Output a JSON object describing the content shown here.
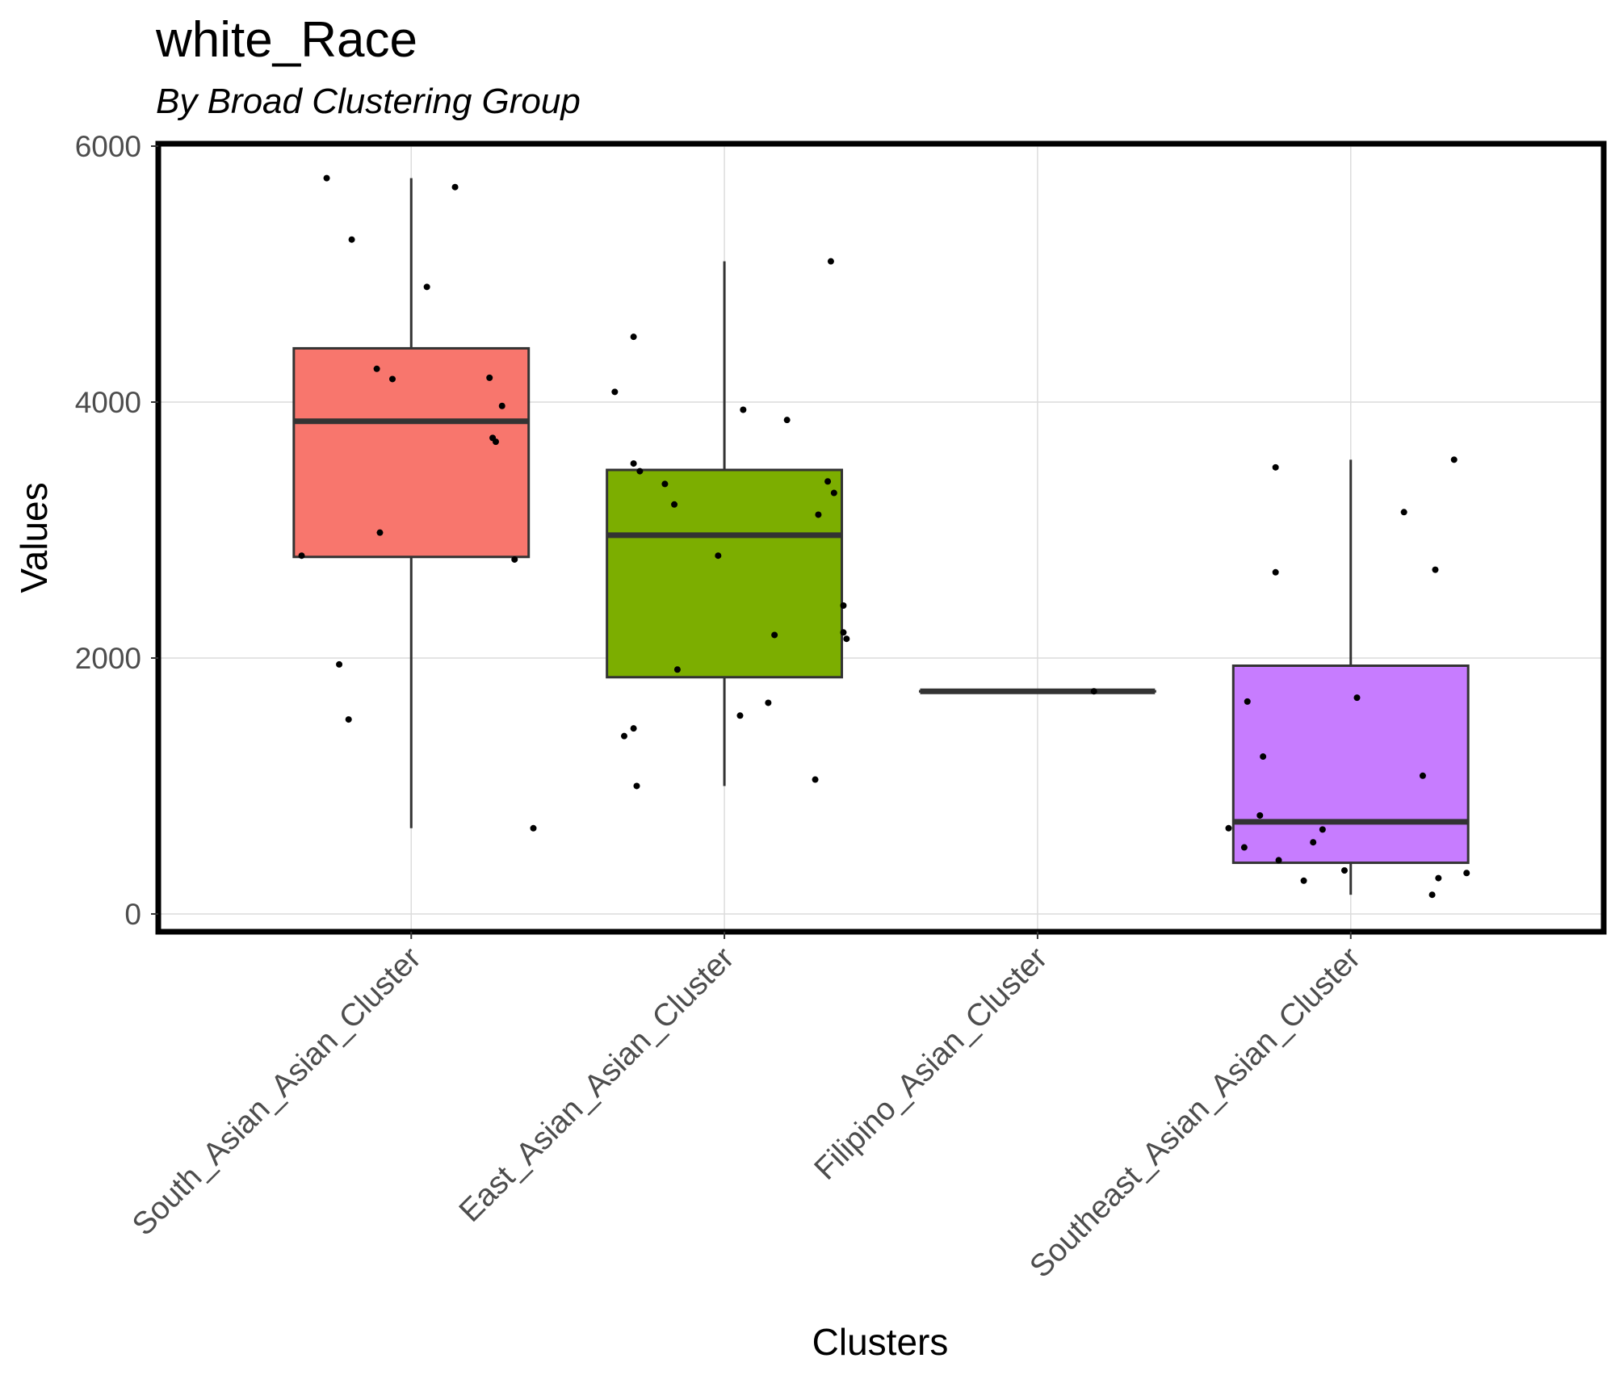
{
  "chart_data": {
    "type": "box",
    "title": "white_Race",
    "subtitle": "By Broad Clustering Group",
    "xlabel": "Clusters",
    "ylabel": "Values",
    "ylim": [
      -120,
      6000
    ],
    "yticks": [
      0,
      2000,
      4000,
      6000
    ],
    "grid": true,
    "categories": [
      "South_Asian_Asian_Cluster",
      "East_Asian_Asian_Cluster",
      "Filipino_Asian_Cluster",
      "Southeast_Asian_Asian_Cluster"
    ],
    "boxes": [
      {
        "category": "South_Asian_Asian_Cluster",
        "color": "#F8766D",
        "whisker_low": 670,
        "q1": 2790,
        "median": 3850,
        "q3": 4420,
        "whisker_high": 5750
      },
      {
        "category": "East_Asian_Asian_Cluster",
        "color": "#7CAE00",
        "whisker_low": 1000,
        "q1": 1850,
        "median": 2960,
        "q3": 3470,
        "whisker_high": 5100
      },
      {
        "category": "Filipino_Asian_Cluster",
        "color": "#00BFC4",
        "whisker_low": 1740,
        "q1": 1740,
        "median": 1740,
        "q3": 1740,
        "whisker_high": 1740
      },
      {
        "category": "Southeast_Asian_Asian_Cluster",
        "color": "#C77CFF",
        "whisker_low": 150,
        "q1": 400,
        "median": 720,
        "q3": 1940,
        "whisker_high": 3550
      }
    ],
    "points": [
      {
        "category": 0,
        "jitter": -0.27,
        "y": 5750
      },
      {
        "category": 0,
        "jitter": 0.14,
        "y": 5680
      },
      {
        "category": 0,
        "jitter": -0.19,
        "y": 5270
      },
      {
        "category": 0,
        "jitter": 0.05,
        "y": 4900
      },
      {
        "category": 0,
        "jitter": -0.11,
        "y": 4260
      },
      {
        "category": 0,
        "jitter": -0.06,
        "y": 4180
      },
      {
        "category": 0,
        "jitter": 0.25,
        "y": 4190
      },
      {
        "category": 0,
        "jitter": 0.29,
        "y": 3970
      },
      {
        "category": 0,
        "jitter": 0.26,
        "y": 3720
      },
      {
        "category": 0,
        "jitter": 0.27,
        "y": 3690
      },
      {
        "category": 0,
        "jitter": -0.1,
        "y": 2980
      },
      {
        "category": 0,
        "jitter": -0.35,
        "y": 2800
      },
      {
        "category": 0,
        "jitter": 0.33,
        "y": 2770
      },
      {
        "category": 0,
        "jitter": -0.23,
        "y": 1950
      },
      {
        "category": 0,
        "jitter": -0.2,
        "y": 1520
      },
      {
        "category": 0,
        "jitter": 0.39,
        "y": 670
      },
      {
        "category": 1,
        "jitter": 0.34,
        "y": 5100
      },
      {
        "category": 1,
        "jitter": -0.29,
        "y": 4510
      },
      {
        "category": 1,
        "jitter": -0.35,
        "y": 4080
      },
      {
        "category": 1,
        "jitter": 0.06,
        "y": 3940
      },
      {
        "category": 1,
        "jitter": 0.2,
        "y": 3860
      },
      {
        "category": 1,
        "jitter": -0.29,
        "y": 3520
      },
      {
        "category": 1,
        "jitter": -0.27,
        "y": 3460
      },
      {
        "category": 1,
        "jitter": -0.19,
        "y": 3360
      },
      {
        "category": 1,
        "jitter": 0.33,
        "y": 3380
      },
      {
        "category": 1,
        "jitter": 0.35,
        "y": 3290
      },
      {
        "category": 1,
        "jitter": -0.16,
        "y": 3200
      },
      {
        "category": 1,
        "jitter": 0.3,
        "y": 3120
      },
      {
        "category": 1,
        "jitter": -0.02,
        "y": 2800
      },
      {
        "category": 1,
        "jitter": 0.38,
        "y": 2410
      },
      {
        "category": 1,
        "jitter": 0.38,
        "y": 2200
      },
      {
        "category": 1,
        "jitter": 0.16,
        "y": 2180
      },
      {
        "category": 1,
        "jitter": 0.39,
        "y": 2150
      },
      {
        "category": 1,
        "jitter": -0.15,
        "y": 1910
      },
      {
        "category": 1,
        "jitter": 0.14,
        "y": 1650
      },
      {
        "category": 1,
        "jitter": 0.05,
        "y": 1550
      },
      {
        "category": 1,
        "jitter": -0.29,
        "y": 1450
      },
      {
        "category": 1,
        "jitter": -0.32,
        "y": 1390
      },
      {
        "category": 1,
        "jitter": 0.29,
        "y": 1050
      },
      {
        "category": 1,
        "jitter": -0.28,
        "y": 1000
      },
      {
        "category": 2,
        "jitter": 0.18,
        "y": 1740
      },
      {
        "category": 3,
        "jitter": 0.33,
        "y": 3550
      },
      {
        "category": 3,
        "jitter": -0.24,
        "y": 3490
      },
      {
        "category": 3,
        "jitter": 0.17,
        "y": 3140
      },
      {
        "category": 3,
        "jitter": 0.27,
        "y": 2690
      },
      {
        "category": 3,
        "jitter": -0.24,
        "y": 2670
      },
      {
        "category": 3,
        "jitter": 0.02,
        "y": 1690
      },
      {
        "category": 3,
        "jitter": -0.33,
        "y": 1660
      },
      {
        "category": 3,
        "jitter": -0.28,
        "y": 1230
      },
      {
        "category": 3,
        "jitter": 0.23,
        "y": 1080
      },
      {
        "category": 3,
        "jitter": -0.29,
        "y": 770
      },
      {
        "category": 3,
        "jitter": -0.39,
        "y": 670
      },
      {
        "category": 3,
        "jitter": -0.09,
        "y": 660
      },
      {
        "category": 3,
        "jitter": -0.12,
        "y": 560
      },
      {
        "category": 3,
        "jitter": -0.34,
        "y": 520
      },
      {
        "category": 3,
        "jitter": -0.23,
        "y": 420
      },
      {
        "category": 3,
        "jitter": -0.02,
        "y": 340
      },
      {
        "category": 3,
        "jitter": 0.37,
        "y": 320
      },
      {
        "category": 3,
        "jitter": 0.28,
        "y": 280
      },
      {
        "category": 3,
        "jitter": -0.15,
        "y": 260
      },
      {
        "category": 3,
        "jitter": 0.26,
        "y": 150
      }
    ]
  }
}
